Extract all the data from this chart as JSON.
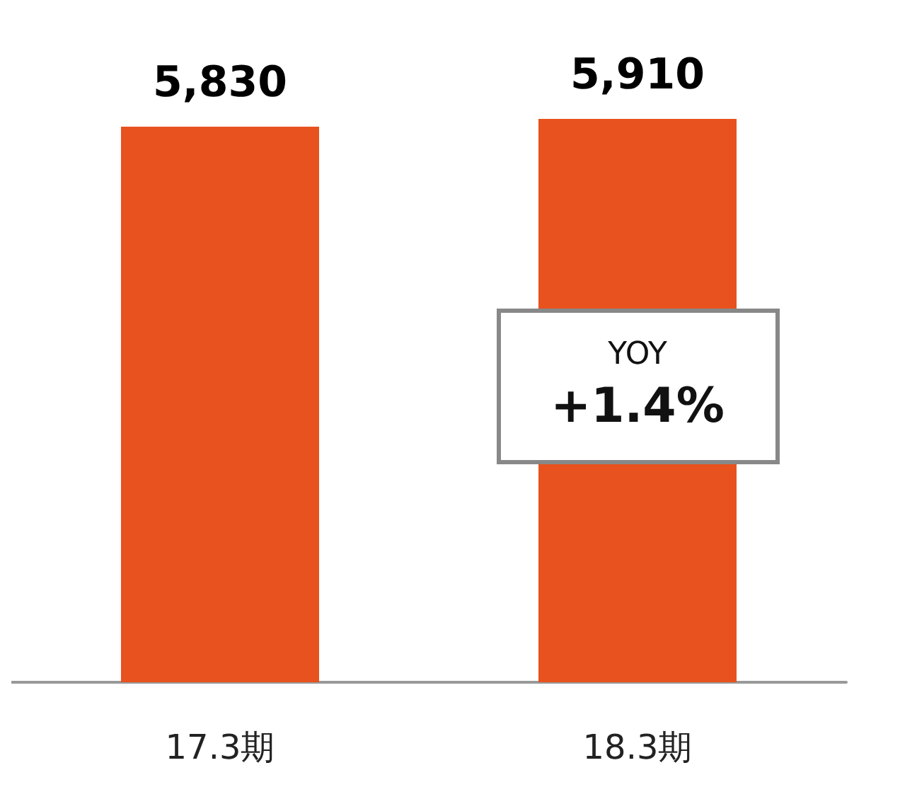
{
  "chart_data": {
    "type": "bar",
    "categories": [
      "17.3期",
      "18.3期"
    ],
    "values": [
      5830,
      5910
    ],
    "value_labels": [
      "5,830",
      "5,910"
    ],
    "color": "#e8521e",
    "annotations": [
      "YOY",
      "+1.4%"
    ]
  }
}
